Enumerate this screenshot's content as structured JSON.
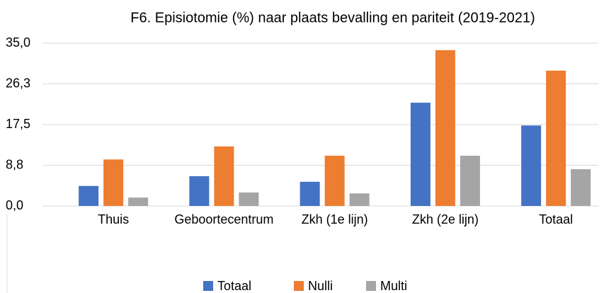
{
  "chart_data": {
    "type": "bar",
    "title": "F6. Episiotomie (%) naar plaats bevalling en pariteit (2019-2021)",
    "categories": [
      "Thuis",
      "Geboortecentrum",
      "Zkh (1e lijn)",
      "Zkh (2e lijn)",
      "Totaal"
    ],
    "series": [
      {
        "name": "Totaal",
        "color": "#4472c4",
        "values": [
          4.3,
          6.4,
          5.2,
          22.2,
          17.3
        ]
      },
      {
        "name": "Nulli",
        "color": "#ed7d31",
        "values": [
          10.0,
          12.8,
          10.8,
          33.5,
          29.1
        ]
      },
      {
        "name": "Multi",
        "color": "#a5a5a5",
        "values": [
          1.8,
          2.9,
          2.7,
          10.8,
          7.9
        ]
      }
    ],
    "ylim": [
      0,
      35
    ],
    "yticks": [
      {
        "value": 0,
        "label": "0,0"
      },
      {
        "value": 8.75,
        "label": "8,8"
      },
      {
        "value": 17.5,
        "label": "17,5"
      },
      {
        "value": 26.25,
        "label": "26,3"
      },
      {
        "value": 35,
        "label": "35,0"
      }
    ],
    "grid": true
  }
}
